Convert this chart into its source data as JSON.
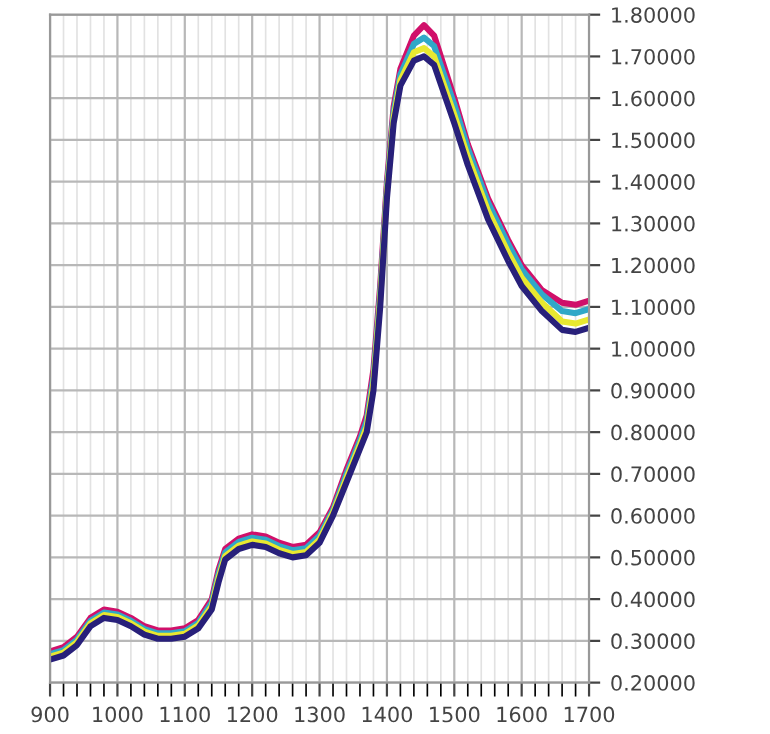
{
  "chart_data": {
    "type": "line",
    "x": [
      900,
      920,
      940,
      960,
      980,
      1000,
      1020,
      1040,
      1060,
      1080,
      1100,
      1120,
      1140,
      1150,
      1160,
      1180,
      1200,
      1220,
      1240,
      1260,
      1280,
      1300,
      1320,
      1340,
      1360,
      1370,
      1380,
      1390,
      1400,
      1410,
      1420,
      1440,
      1455,
      1470,
      1500,
      1520,
      1550,
      1580,
      1600,
      1630,
      1660,
      1680,
      1700
    ],
    "series": [
      {
        "color": "#d0106a",
        "values": [
          0.275,
          0.285,
          0.31,
          0.355,
          0.375,
          0.37,
          0.355,
          0.335,
          0.325,
          0.325,
          0.33,
          0.35,
          0.4,
          0.47,
          0.52,
          0.545,
          0.555,
          0.55,
          0.535,
          0.525,
          0.53,
          0.56,
          0.62,
          0.71,
          0.79,
          0.84,
          0.95,
          1.15,
          1.4,
          1.58,
          1.67,
          1.75,
          1.775,
          1.75,
          1.6,
          1.49,
          1.36,
          1.26,
          1.2,
          1.14,
          1.11,
          1.105,
          1.115
        ]
      },
      {
        "color": "#30a8c8",
        "values": [
          0.268,
          0.278,
          0.303,
          0.348,
          0.368,
          0.363,
          0.348,
          0.328,
          0.318,
          0.318,
          0.323,
          0.343,
          0.392,
          0.46,
          0.512,
          0.537,
          0.547,
          0.542,
          0.527,
          0.517,
          0.522,
          0.552,
          0.613,
          0.7,
          0.78,
          0.827,
          0.933,
          1.133,
          1.387,
          1.567,
          1.657,
          1.73,
          1.745,
          1.725,
          1.585,
          1.48,
          1.35,
          1.25,
          1.19,
          1.13,
          1.09,
          1.085,
          1.095
        ]
      },
      {
        "color": "#e8e830",
        "values": [
          0.262,
          0.272,
          0.297,
          0.342,
          0.362,
          0.357,
          0.342,
          0.322,
          0.312,
          0.312,
          0.317,
          0.337,
          0.383,
          0.45,
          0.503,
          0.528,
          0.538,
          0.533,
          0.518,
          0.508,
          0.513,
          0.543,
          0.607,
          0.69,
          0.77,
          0.813,
          0.917,
          1.117,
          1.373,
          1.553,
          1.643,
          1.71,
          1.72,
          1.7,
          1.56,
          1.46,
          1.33,
          1.23,
          1.17,
          1.11,
          1.065,
          1.06,
          1.07
        ]
      },
      {
        "color": "#28207a",
        "values": [
          0.255,
          0.265,
          0.29,
          0.335,
          0.355,
          0.35,
          0.335,
          0.315,
          0.305,
          0.305,
          0.31,
          0.33,
          0.375,
          0.44,
          0.495,
          0.52,
          0.53,
          0.525,
          0.51,
          0.5,
          0.505,
          0.535,
          0.6,
          0.68,
          0.76,
          0.8,
          0.9,
          1.1,
          1.36,
          1.54,
          1.63,
          1.69,
          1.7,
          1.68,
          1.54,
          1.44,
          1.31,
          1.21,
          1.15,
          1.09,
          1.045,
          1.04,
          1.05
        ]
      }
    ],
    "xlim": [
      900,
      1700
    ],
    "ylim": [
      0.2,
      1.8
    ],
    "xticks": [
      900,
      {
        "value": 920,
        "label": null
      },
      {
        "value": 940,
        "label": null
      },
      {
        "value": 960,
        "label": null
      },
      {
        "value": 980,
        "label": null
      },
      1000,
      {
        "value": 1020,
        "label": null
      },
      {
        "value": 1040,
        "label": null
      },
      {
        "value": 1060,
        "label": null
      },
      {
        "value": 1080,
        "label": null
      },
      1100,
      {
        "value": 1120,
        "label": null
      },
      {
        "value": 1140,
        "label": null
      },
      {
        "value": 1160,
        "label": null
      },
      {
        "value": 1180,
        "label": null
      },
      1200,
      {
        "value": 1220,
        "label": null
      },
      {
        "value": 1240,
        "label": null
      },
      {
        "value": 1260,
        "label": null
      },
      {
        "value": 1280,
        "label": null
      },
      1300,
      {
        "value": 1320,
        "label": null
      },
      {
        "value": 1340,
        "label": null
      },
      {
        "value": 1360,
        "label": null
      },
      {
        "value": 1380,
        "label": null
      },
      1400,
      {
        "value": 1420,
        "label": null
      },
      {
        "value": 1440,
        "label": null
      },
      {
        "value": 1460,
        "label": null
      },
      {
        "value": 1480,
        "label": null
      },
      1500,
      {
        "value": 1520,
        "label": null
      },
      {
        "value": 1540,
        "label": null
      },
      {
        "value": 1560,
        "label": null
      },
      {
        "value": 1580,
        "label": null
      },
      1600,
      {
        "value": 1620,
        "label": null
      },
      {
        "value": 1640,
        "label": null
      },
      {
        "value": 1660,
        "label": null
      },
      {
        "value": 1680,
        "label": null
      },
      1700
    ],
    "yticks": [
      {
        "value": 0.2,
        "label": "0.20000"
      },
      {
        "value": 0.3,
        "label": "0.30000"
      },
      {
        "value": 0.4,
        "label": "0.40000"
      },
      {
        "value": 0.5,
        "label": "0.50000"
      },
      {
        "value": 0.6,
        "label": "0.60000"
      },
      {
        "value": 0.7,
        "label": "0.70000"
      },
      {
        "value": 0.8,
        "label": "0.80000"
      },
      {
        "value": 0.9,
        "label": "0.90000"
      },
      {
        "value": 1.0,
        "label": "1.00000"
      },
      {
        "value": 1.1,
        "label": "1.10000"
      },
      {
        "value": 1.2,
        "label": "1.20000"
      },
      {
        "value": 1.3,
        "label": "1.30000"
      },
      {
        "value": 1.4,
        "label": "1.40000"
      },
      {
        "value": 1.5,
        "label": "1.50000"
      },
      {
        "value": 1.6,
        "label": "1.60000"
      },
      {
        "value": 1.7,
        "label": "1.70000"
      },
      {
        "value": 1.8,
        "label": "1.80000"
      }
    ],
    "grid": true,
    "line_style": "solid"
  }
}
